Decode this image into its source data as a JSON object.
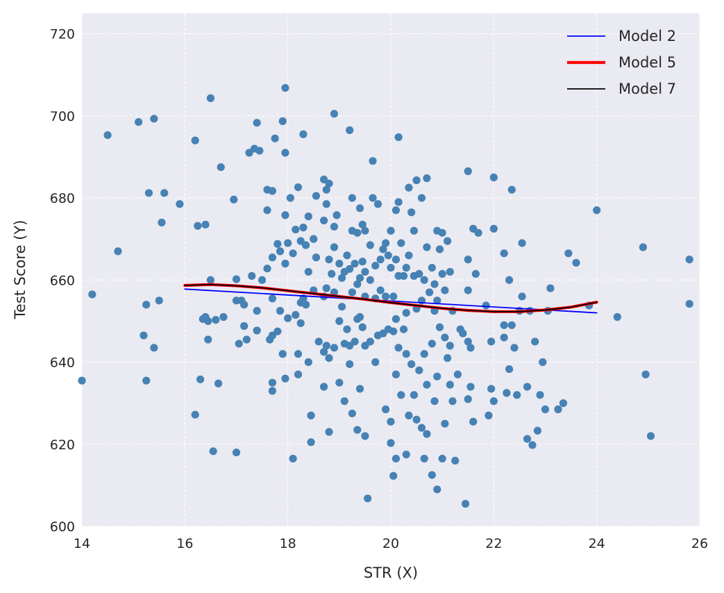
{
  "chart_data": {
    "type": "scatter",
    "title": "",
    "xlabel": "STR (X)",
    "ylabel": "Test Score (Y)",
    "xlim": [
      14,
      26
    ],
    "ylim": [
      600,
      725
    ],
    "xticks": [
      14,
      16,
      18,
      20,
      22,
      24,
      26
    ],
    "yticks": [
      600,
      620,
      640,
      660,
      680,
      700,
      720
    ],
    "xtick_labels": [
      "14",
      "16",
      "18",
      "20",
      "22",
      "24",
      "26"
    ],
    "ytick_labels": [
      "600",
      "620",
      "640",
      "660",
      "680",
      "700",
      "720"
    ],
    "grid": true,
    "legend": {
      "placement": "top-right"
    },
    "colors": {
      "background": "#eaeaf2",
      "points": "#4682b4",
      "model2": "#0000ff",
      "model5": "#ff0000",
      "model7": "#000000"
    },
    "scatter_points": [
      [
        14.0,
        635.5
      ],
      [
        14.2,
        656.5
      ],
      [
        14.5,
        695.3
      ],
      [
        14.7,
        667.0
      ],
      [
        15.1,
        698.5
      ],
      [
        15.2,
        646.5
      ],
      [
        15.25,
        654.0
      ],
      [
        15.25,
        635.5
      ],
      [
        15.3,
        681.2
      ],
      [
        15.4,
        699.3
      ],
      [
        15.4,
        643.5
      ],
      [
        15.5,
        655.0
      ],
      [
        15.55,
        674.0
      ],
      [
        15.6,
        681.2
      ],
      [
        15.9,
        678.5
      ],
      [
        16.2,
        694.0
      ],
      [
        16.2,
        627.2
      ],
      [
        16.25,
        673.2
      ],
      [
        16.3,
        635.8
      ],
      [
        16.35,
        650.5
      ],
      [
        16.4,
        673.5
      ],
      [
        16.4,
        651.0
      ],
      [
        16.45,
        645.5
      ],
      [
        16.45,
        650.0
      ],
      [
        16.5,
        704.3
      ],
      [
        16.5,
        660.0
      ],
      [
        16.55,
        618.3
      ],
      [
        16.6,
        650.3
      ],
      [
        16.65,
        634.8
      ],
      [
        16.7,
        687.5
      ],
      [
        16.75,
        651.0
      ],
      [
        16.95,
        679.6
      ],
      [
        17.0,
        660.2
      ],
      [
        17.0,
        655.0
      ],
      [
        17.0,
        618.0
      ],
      [
        17.05,
        644.5
      ],
      [
        17.1,
        655.0
      ],
      [
        17.15,
        654.0
      ],
      [
        17.15,
        648.8
      ],
      [
        17.2,
        645.5
      ],
      [
        17.25,
        691.0
      ],
      [
        17.3,
        661.0
      ],
      [
        17.35,
        692.0
      ],
      [
        17.4,
        698.3
      ],
      [
        17.4,
        652.5
      ],
      [
        17.4,
        647.7
      ],
      [
        17.45,
        691.5
      ],
      [
        17.5,
        660.0
      ],
      [
        17.6,
        682.0
      ],
      [
        17.6,
        677.0
      ],
      [
        17.6,
        662.8
      ],
      [
        17.65,
        645.5
      ],
      [
        17.7,
        681.7
      ],
      [
        17.7,
        665.5
      ],
      [
        17.7,
        655.5
      ],
      [
        17.7,
        646.5
      ],
      [
        17.7,
        635.0
      ],
      [
        17.7,
        633.0
      ],
      [
        17.75,
        694.5
      ],
      [
        17.8,
        668.8
      ],
      [
        17.8,
        647.5
      ],
      [
        17.85,
        667.0
      ],
      [
        17.85,
        652.5
      ],
      [
        17.9,
        698.7
      ],
      [
        17.9,
        642.0
      ],
      [
        17.95,
        706.8
      ],
      [
        17.95,
        691.0
      ],
      [
        17.95,
        675.8
      ],
      [
        17.95,
        664.0
      ],
      [
        17.95,
        636.0
      ],
      [
        18.0,
        669.0
      ],
      [
        18.0,
        650.7
      ],
      [
        18.05,
        680.0
      ],
      [
        18.1,
        666.5
      ],
      [
        18.1,
        616.5
      ],
      [
        18.15,
        672.3
      ],
      [
        18.15,
        651.5
      ],
      [
        18.2,
        682.6
      ],
      [
        18.2,
        642.0
      ],
      [
        18.2,
        637.0
      ],
      [
        18.25,
        669.5
      ],
      [
        18.25,
        654.5
      ],
      [
        18.25,
        649.5
      ],
      [
        18.3,
        695.5
      ],
      [
        18.3,
        672.8
      ],
      [
        18.3,
        655.5
      ],
      [
        18.35,
        668.5
      ],
      [
        18.35,
        654.0
      ],
      [
        18.4,
        675.5
      ],
      [
        18.4,
        662.0
      ],
      [
        18.4,
        640.0
      ],
      [
        18.45,
        627.0
      ],
      [
        18.45,
        620.5
      ],
      [
        18.5,
        670.0
      ],
      [
        18.5,
        657.5
      ],
      [
        18.55,
        680.5
      ],
      [
        18.55,
        665.5
      ],
      [
        18.6,
        645.0
      ],
      [
        18.7,
        684.5
      ],
      [
        18.7,
        674.5
      ],
      [
        18.7,
        656.0
      ],
      [
        18.7,
        642.5
      ],
      [
        18.7,
        634.0
      ],
      [
        18.75,
        682.0
      ],
      [
        18.75,
        678.5
      ],
      [
        18.75,
        658.0
      ],
      [
        18.75,
        644.0
      ],
      [
        18.8,
        683.5
      ],
      [
        18.8,
        665.0
      ],
      [
        18.8,
        641.0
      ],
      [
        18.8,
        623.0
      ],
      [
        18.85,
        661.5
      ],
      [
        18.9,
        700.5
      ],
      [
        18.9,
        673.0
      ],
      [
        18.9,
        668.0
      ],
      [
        18.9,
        657.0
      ],
      [
        18.9,
        643.5
      ],
      [
        18.95,
        675.8
      ],
      [
        19.0,
        664.0
      ],
      [
        19.0,
        650.0
      ],
      [
        19.0,
        635.0
      ],
      [
        19.05,
        660.5
      ],
      [
        19.05,
        653.5
      ],
      [
        19.1,
        662.0
      ],
      [
        19.1,
        644.5
      ],
      [
        19.1,
        630.5
      ],
      [
        19.15,
        666.0
      ],
      [
        19.15,
        648.0
      ],
      [
        19.2,
        696.5
      ],
      [
        19.2,
        662.7
      ],
      [
        19.2,
        644.0
      ],
      [
        19.2,
        639.5
      ],
      [
        19.25,
        680.0
      ],
      [
        19.25,
        672.0
      ],
      [
        19.25,
        657.0
      ],
      [
        19.25,
        627.5
      ],
      [
        19.3,
        664.0
      ],
      [
        19.3,
        645.0
      ],
      [
        19.35,
        671.5
      ],
      [
        19.35,
        659.0
      ],
      [
        19.35,
        650.5
      ],
      [
        19.35,
        623.5
      ],
      [
        19.4,
        677.5
      ],
      [
        19.4,
        660.5
      ],
      [
        19.4,
        651.0
      ],
      [
        19.4,
        633.5
      ],
      [
        19.45,
        673.5
      ],
      [
        19.45,
        664.5
      ],
      [
        19.45,
        648.5
      ],
      [
        19.5,
        672.0
      ],
      [
        19.5,
        662.0
      ],
      [
        19.5,
        656.0
      ],
      [
        19.5,
        644.0
      ],
      [
        19.5,
        622.0
      ],
      [
        19.55,
        606.8
      ],
      [
        19.6,
        668.5
      ],
      [
        19.6,
        660.0
      ],
      [
        19.6,
        645.0
      ],
      [
        19.65,
        689.0
      ],
      [
        19.65,
        680.0
      ],
      [
        19.7,
        663.5
      ],
      [
        19.7,
        655.5
      ],
      [
        19.7,
        640.0
      ],
      [
        19.75,
        678.5
      ],
      [
        19.75,
        646.5
      ],
      [
        19.8,
        665.0
      ],
      [
        19.8,
        657.5
      ],
      [
        19.85,
        667.5
      ],
      [
        19.85,
        647.0
      ],
      [
        19.9,
        669.0
      ],
      [
        19.9,
        656.0
      ],
      [
        19.9,
        628.5
      ],
      [
        19.95,
        666.0
      ],
      [
        19.95,
        648.0
      ],
      [
        20.0,
        672.0
      ],
      [
        20.0,
        663.0
      ],
      [
        20.0,
        625.5
      ],
      [
        20.0,
        620.3
      ],
      [
        20.05,
        656.0
      ],
      [
        20.05,
        647.5
      ],
      [
        20.05,
        612.3
      ],
      [
        20.1,
        677.0
      ],
      [
        20.1,
        665.0
      ],
      [
        20.1,
        650.5
      ],
      [
        20.1,
        637.0
      ],
      [
        20.1,
        616.5
      ],
      [
        20.15,
        694.8
      ],
      [
        20.15,
        679.0
      ],
      [
        20.15,
        661.0
      ],
      [
        20.15,
        643.5
      ],
      [
        20.2,
        669.0
      ],
      [
        20.2,
        632.0
      ],
      [
        20.25,
        661.0
      ],
      [
        20.25,
        648.0
      ],
      [
        20.3,
        663.0
      ],
      [
        20.3,
        652.0
      ],
      [
        20.3,
        642.0
      ],
      [
        20.3,
        617.5
      ],
      [
        20.35,
        682.5
      ],
      [
        20.35,
        666.0
      ],
      [
        20.35,
        627.0
      ],
      [
        20.4,
        676.5
      ],
      [
        20.4,
        639.5
      ],
      [
        20.45,
        672.0
      ],
      [
        20.45,
        661.0
      ],
      [
        20.45,
        632.0
      ],
      [
        20.5,
        684.3
      ],
      [
        20.5,
        653.0
      ],
      [
        20.5,
        626.0
      ],
      [
        20.55,
        661.5
      ],
      [
        20.55,
        638.0
      ],
      [
        20.6,
        680.0
      ],
      [
        20.6,
        655.0
      ],
      [
        20.6,
        624.0
      ],
      [
        20.65,
        660.0
      ],
      [
        20.65,
        642.0
      ],
      [
        20.65,
        616.5
      ],
      [
        20.7,
        684.8
      ],
      [
        20.7,
        668.0
      ],
      [
        20.7,
        634.5
      ],
      [
        20.7,
        622.5
      ],
      [
        20.75,
        657.0
      ],
      [
        20.8,
        663.0
      ],
      [
        20.8,
        644.5
      ],
      [
        20.8,
        612.5
      ],
      [
        20.85,
        659.0
      ],
      [
        20.85,
        652.5
      ],
      [
        20.85,
        630.5
      ],
      [
        20.9,
        672.0
      ],
      [
        20.9,
        655.0
      ],
      [
        20.9,
        636.5
      ],
      [
        20.9,
        609.0
      ],
      [
        20.95,
        667.5
      ],
      [
        20.95,
        648.5
      ],
      [
        21.0,
        671.5
      ],
      [
        21.0,
        661.5
      ],
      [
        21.0,
        616.5
      ],
      [
        21.05,
        657.5
      ],
      [
        21.05,
        646.0
      ],
      [
        21.05,
        625.0
      ],
      [
        21.1,
        669.5
      ],
      [
        21.1,
        641.0
      ],
      [
        21.15,
        662.0
      ],
      [
        21.15,
        644.0
      ],
      [
        21.15,
        634.5
      ],
      [
        21.2,
        652.5
      ],
      [
        21.2,
        630.5
      ],
      [
        21.25,
        616.0
      ],
      [
        21.3,
        637.0
      ],
      [
        21.35,
        648.0
      ],
      [
        21.4,
        647.0
      ],
      [
        21.45,
        605.5
      ],
      [
        21.5,
        686.5
      ],
      [
        21.5,
        665.0
      ],
      [
        21.5,
        657.5
      ],
      [
        21.5,
        645.0
      ],
      [
        21.5,
        631.0
      ],
      [
        21.55,
        643.5
      ],
      [
        21.55,
        634.0
      ],
      [
        21.6,
        672.5
      ],
      [
        21.6,
        625.5
      ],
      [
        21.65,
        661.5
      ],
      [
        21.7,
        671.5
      ],
      [
        21.85,
        653.8
      ],
      [
        21.9,
        627.0
      ],
      [
        21.95,
        645.0
      ],
      [
        21.95,
        633.5
      ],
      [
        22.0,
        685.0
      ],
      [
        22.0,
        672.5
      ],
      [
        22.0,
        630.5
      ],
      [
        22.2,
        666.5
      ],
      [
        22.2,
        649.0
      ],
      [
        22.2,
        646.0
      ],
      [
        22.25,
        632.5
      ],
      [
        22.3,
        660.0
      ],
      [
        22.3,
        638.3
      ],
      [
        22.35,
        682.0
      ],
      [
        22.35,
        649.0
      ],
      [
        22.4,
        643.5
      ],
      [
        22.45,
        632.0
      ],
      [
        22.5,
        652.5
      ],
      [
        22.55,
        669.0
      ],
      [
        22.55,
        656.0
      ],
      [
        22.65,
        634.0
      ],
      [
        22.65,
        621.3
      ],
      [
        22.7,
        652.5
      ],
      [
        22.75,
        619.8
      ],
      [
        22.8,
        645.0
      ],
      [
        22.85,
        623.3
      ],
      [
        22.9,
        632.0
      ],
      [
        22.95,
        640.0
      ],
      [
        23.0,
        628.5
      ],
      [
        23.05,
        652.5
      ],
      [
        23.1,
        658.0
      ],
      [
        23.25,
        628.5
      ],
      [
        23.35,
        630.0
      ],
      [
        23.45,
        666.5
      ],
      [
        23.6,
        664.2
      ],
      [
        23.85,
        653.8
      ],
      [
        24.0,
        677.0
      ],
      [
        24.4,
        651.0
      ],
      [
        24.9,
        668.0
      ],
      [
        24.95,
        637.0
      ],
      [
        25.05,
        622.0
      ],
      [
        25.8,
        665.0
      ],
      [
        25.8,
        654.2
      ]
    ],
    "series": [
      {
        "name": "Model 2",
        "x": [
          16.0,
          24.0
        ],
        "y": [
          657.8,
          652.0
        ]
      },
      {
        "name": "Model 5",
        "x": [
          16.0,
          16.5,
          17.0,
          17.5,
          18.0,
          18.5,
          19.0,
          19.5,
          20.0,
          20.5,
          21.0,
          21.5,
          22.0,
          22.5,
          23.0,
          23.5,
          24.0
        ],
        "y": [
          658.7,
          658.9,
          658.6,
          658.1,
          657.4,
          656.7,
          656.0,
          655.3,
          654.5,
          653.8,
          653.1,
          652.6,
          652.3,
          652.3,
          652.7,
          653.4,
          654.6
        ]
      },
      {
        "name": "Model 7",
        "x": [
          16.0,
          16.5,
          17.0,
          17.5,
          18.0,
          18.5,
          19.0,
          19.5,
          20.0,
          20.5,
          21.0,
          21.5,
          22.0,
          22.5,
          23.0,
          23.5,
          24.0
        ],
        "y": [
          658.7,
          658.9,
          658.6,
          658.1,
          657.4,
          656.7,
          656.0,
          655.3,
          654.5,
          653.8,
          653.1,
          652.6,
          652.3,
          652.3,
          652.7,
          653.4,
          654.6
        ]
      }
    ]
  }
}
